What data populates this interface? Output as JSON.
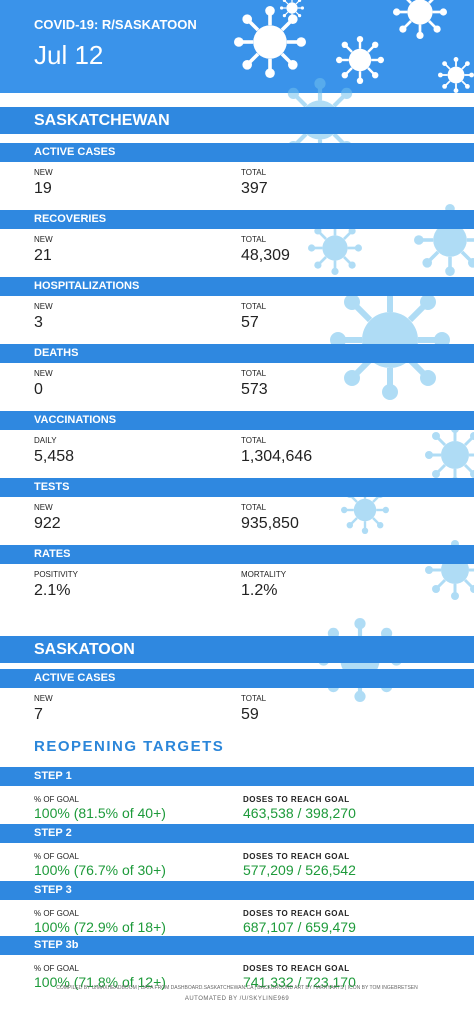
{
  "header": {
    "title": "COVID-19: R/SASKATOON",
    "date": "Jul 12"
  },
  "regions": [
    {
      "name": "SASKATCHEWAN",
      "stats": [
        {
          "title": "ACTIVE CASES",
          "left_label": "NEW",
          "left_value": "19",
          "right_label": "TOTAL",
          "right_value": "397"
        },
        {
          "title": "RECOVERIES",
          "left_label": "NEW",
          "left_value": "21",
          "right_label": "TOTAL",
          "right_value": "48,309"
        },
        {
          "title": "HOSPITALIZATIONS",
          "left_label": "NEW",
          "left_value": "3",
          "right_label": "TOTAL",
          "right_value": "57"
        },
        {
          "title": "DEATHS",
          "left_label": "NEW",
          "left_value": "0",
          "right_label": "TOTAL",
          "right_value": "573"
        },
        {
          "title": "VACCINATIONS",
          "left_label": "DAILY",
          "left_value": "5,458",
          "right_label": "TOTAL",
          "right_value": "1,304,646"
        },
        {
          "title": "TESTS",
          "left_label": "NEW",
          "left_value": "922",
          "right_label": "TOTAL",
          "right_value": "935,850"
        },
        {
          "title": "RATES",
          "left_label": "POSITIVITY",
          "left_value": "2.1%",
          "right_label": "MORTALITY",
          "right_value": "1.2%"
        }
      ]
    },
    {
      "name": "SASKATOON",
      "stats": [
        {
          "title": "ACTIVE CASES",
          "left_label": "NEW",
          "left_value": "7",
          "right_label": "TOTAL",
          "right_value": "59"
        }
      ]
    }
  ],
  "reopening": {
    "title": "REOPENING TARGETS",
    "steps": [
      {
        "title": "STEP 1",
        "left_label": "% OF GOAL",
        "left_value": "100% (81.5% of 40+)",
        "right_label": "DOSES TO REACH GOAL",
        "right_value": "463,538 / 398,270"
      },
      {
        "title": "STEP 2",
        "left_label": "% OF GOAL",
        "left_value": "100% (76.7% of 30+)",
        "right_label": "DOSES TO REACH GOAL",
        "right_value": "577,209 / 526,542"
      },
      {
        "title": "STEP 3",
        "left_label": "% OF GOAL",
        "left_value": "100% (72.9% of 18+)",
        "right_label": "DOSES TO REACH GOAL",
        "right_value": "687,107 / 659,479"
      },
      {
        "title": "STEP 3b",
        "left_label": "% OF GOAL",
        "left_value": "100% (71.8% of 12+)",
        "right_label": "DOSES TO REACH GOAL",
        "right_value": "741,332 / 723,170"
      }
    ]
  },
  "footer": {
    "credits": "COMPILED BY U/MAXHEADBOOM | DATA FROM DASHBOARD.SASKATCHEWAN.CA | BACKGROUND ART BY HARRYARTS | ICON BY TOM INGEBRETSEN",
    "automation": "AUTOMATED BY /U/SKYLINE969"
  }
}
